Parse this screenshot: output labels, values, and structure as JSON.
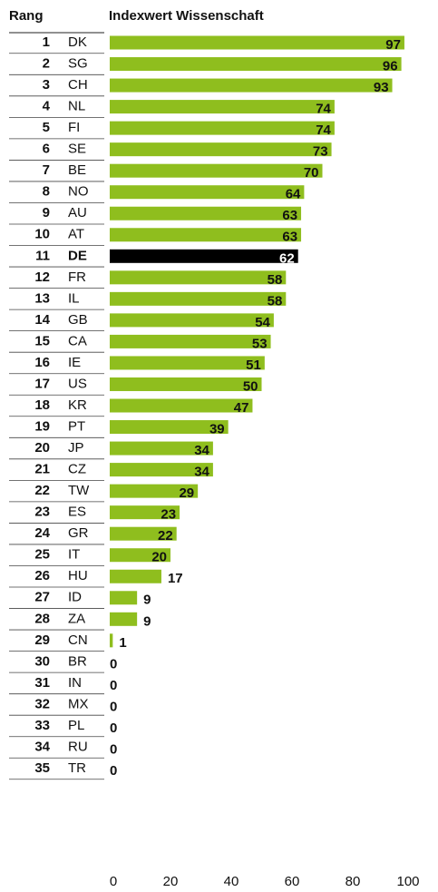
{
  "chart_data": {
    "type": "bar",
    "orientation": "horizontal",
    "rank_label": "Rang",
    "title": "Indexwert Wissenschaft",
    "ranks": [
      1,
      2,
      3,
      4,
      5,
      6,
      7,
      8,
      9,
      10,
      11,
      12,
      13,
      14,
      15,
      16,
      17,
      18,
      19,
      20,
      21,
      22,
      23,
      24,
      25,
      26,
      27,
      28,
      29,
      30,
      31,
      32,
      33,
      34,
      35
    ],
    "categories": [
      "DK",
      "SG",
      "CH",
      "NL",
      "FI",
      "SE",
      "BE",
      "NO",
      "AU",
      "AT",
      "DE",
      "FR",
      "IL",
      "GB",
      "CA",
      "IE",
      "US",
      "KR",
      "PT",
      "JP",
      "CZ",
      "TW",
      "ES",
      "GR",
      "IT",
      "HU",
      "ID",
      "ZA",
      "CN",
      "BR",
      "IN",
      "MX",
      "PL",
      "RU",
      "TR"
    ],
    "values": [
      97,
      96,
      93,
      74,
      74,
      73,
      70,
      64,
      63,
      63,
      62,
      58,
      58,
      54,
      53,
      51,
      50,
      47,
      39,
      34,
      34,
      29,
      23,
      22,
      20,
      17,
      9,
      9,
      1,
      0,
      0,
      0,
      0,
      0,
      0
    ],
    "color": "#8fbe1e",
    "highlight": "DE",
    "highlight_color": "#000000",
    "xlim": [
      0,
      100
    ],
    "xticks": [
      0,
      20,
      40,
      60,
      80,
      100
    ]
  }
}
